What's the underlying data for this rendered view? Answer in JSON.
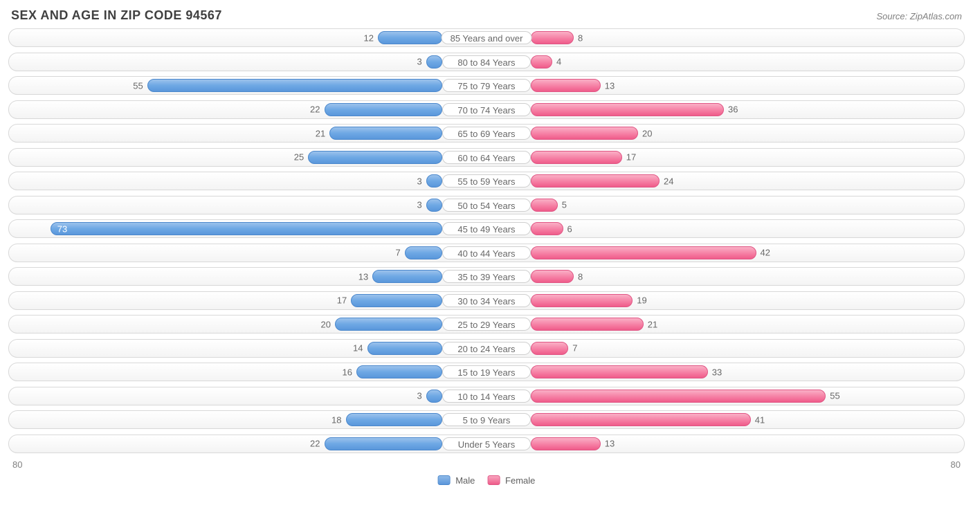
{
  "header": {
    "title": "SEX AND AGE IN ZIP CODE 94567",
    "source": "Source: ZipAtlas.com"
  },
  "chart": {
    "type": "diverging-bar",
    "axis_max": 80,
    "axis_label_left": "80",
    "axis_label_right": "80",
    "male_color": "#6ea8e4",
    "male_border": "#4a87cc",
    "female_color": "#f57ba1",
    "female_border": "#e05584",
    "row_bg": "#f4f4f4",
    "row_border": "#d8d8d8",
    "label_pill_bg": "#ffffff",
    "label_pill_border": "#cfcfcf",
    "value_font_size": 13,
    "value_color_outside": "#686868",
    "value_color_inside": "#ffffff",
    "inside_threshold_pct": 78,
    "rows": [
      {
        "label": "85 Years and over",
        "male": 12,
        "female": 8
      },
      {
        "label": "80 to 84 Years",
        "male": 3,
        "female": 4
      },
      {
        "label": "75 to 79 Years",
        "male": 55,
        "female": 13
      },
      {
        "label": "70 to 74 Years",
        "male": 22,
        "female": 36
      },
      {
        "label": "65 to 69 Years",
        "male": 21,
        "female": 20
      },
      {
        "label": "60 to 64 Years",
        "male": 25,
        "female": 17
      },
      {
        "label": "55 to 59 Years",
        "male": 3,
        "female": 24
      },
      {
        "label": "50 to 54 Years",
        "male": 3,
        "female": 5
      },
      {
        "label": "45 to 49 Years",
        "male": 73,
        "female": 6
      },
      {
        "label": "40 to 44 Years",
        "male": 7,
        "female": 42
      },
      {
        "label": "35 to 39 Years",
        "male": 13,
        "female": 8
      },
      {
        "label": "30 to 34 Years",
        "male": 17,
        "female": 19
      },
      {
        "label": "25 to 29 Years",
        "male": 20,
        "female": 21
      },
      {
        "label": "20 to 24 Years",
        "male": 14,
        "female": 7
      },
      {
        "label": "15 to 19 Years",
        "male": 16,
        "female": 33
      },
      {
        "label": "10 to 14 Years",
        "male": 3,
        "female": 55
      },
      {
        "label": "5 to 9 Years",
        "male": 18,
        "female": 41
      },
      {
        "label": "Under 5 Years",
        "male": 22,
        "female": 13
      }
    ]
  },
  "legend": {
    "male": "Male",
    "female": "Female"
  }
}
